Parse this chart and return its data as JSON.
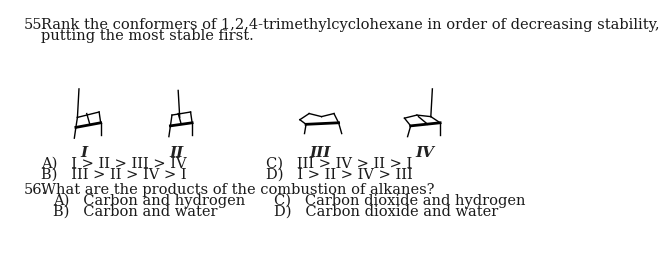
{
  "bg_color": "#ffffff",
  "text_color": "#1a1a1a",
  "q55_line1": "Rank the conformers of 1,2,4-trimethylcyclohexane in order of decreasing stability,",
  "q55_line2": "putting the most stable first.",
  "label_I": "I",
  "label_II": "II",
  "label_III": "III",
  "label_IV": "IV",
  "ans_A": "A)   I > II > III > IV",
  "ans_B": "B)   III > II > IV > I",
  "ans_C": "C)   III > IV > II > I",
  "ans_D": "D)   I > II > IV > III",
  "q56_line1": "What are the products of the combustion of alkanes?",
  "q56_A": "A)   Carbon and hydrogen",
  "q56_B": "B)   Carbon and water",
  "q56_C": "C)   Carbon dioxide and hydrogen",
  "q56_D": "D)   Carbon dioxide and water",
  "font_size_q": 10.5,
  "font_size_a": 10.5
}
